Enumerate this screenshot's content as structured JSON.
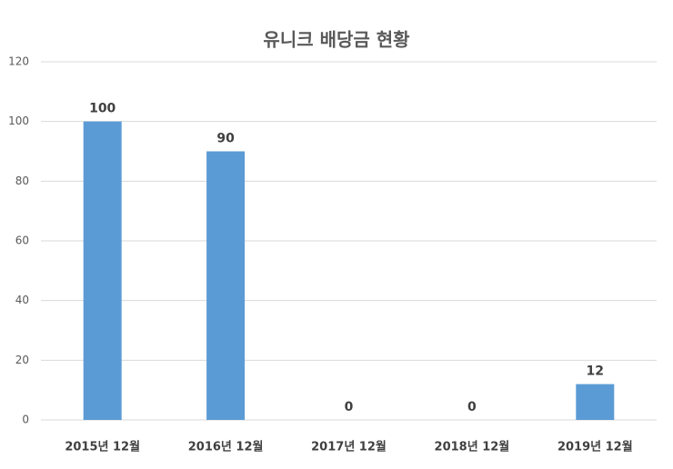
{
  "chart_data": {
    "type": "bar",
    "title": "유니크 배당금 현황",
    "categories": [
      "2015년 12월",
      "2016년 12월",
      "2017년 12월",
      "2018년 12월",
      "2019년 12월"
    ],
    "values": [
      100,
      90,
      0,
      0,
      12
    ],
    "color": "#5b9bd5",
    "ylim": [
      0,
      120
    ],
    "yticks": [
      0,
      20,
      40,
      60,
      80,
      100,
      120
    ],
    "grid": true
  }
}
